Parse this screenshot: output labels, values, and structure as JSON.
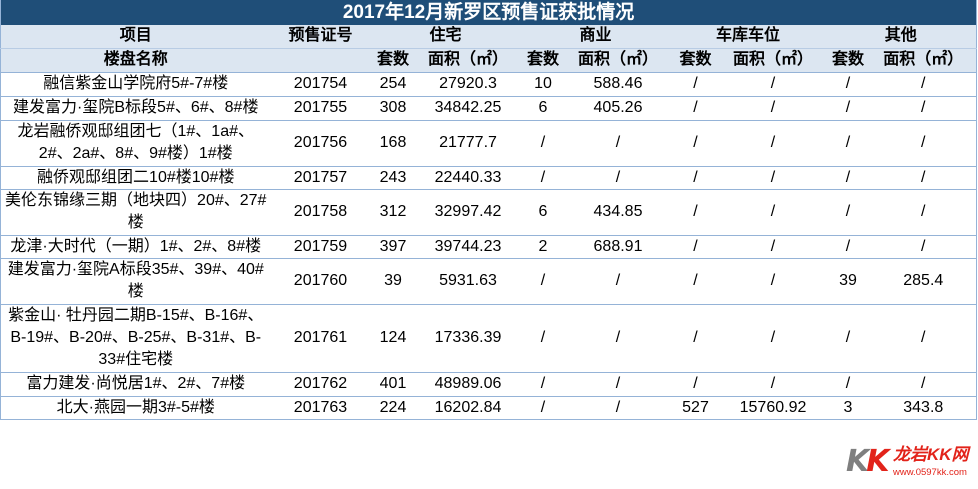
{
  "chart_data": {
    "type": "table",
    "title": "2017年12月新罗区预售证获批情况",
    "header": {
      "project": "项目",
      "permit": "预售证号",
      "residential": "住宅",
      "commercial": "商业",
      "garage": "车库车位",
      "other": "其他",
      "property_name": "楼盘名称",
      "units": "套数",
      "area": "面积（㎡）"
    },
    "rows": [
      {
        "name": "融信紫金山学院府5#-7#楼",
        "permit": "201754",
        "residential_units": 254,
        "residential_area": 27920.3,
        "commercial_units": 10,
        "commercial_area": 588.46,
        "garage_units": "/",
        "garage_area": "/",
        "other_units": "/",
        "other_area": "/"
      },
      {
        "name": "建发富力·玺院B标段5#、6#、8#楼",
        "permit": "201755",
        "residential_units": 308,
        "residential_area": 34842.25,
        "commercial_units": 6,
        "commercial_area": 405.26,
        "garage_units": "/",
        "garage_area": "/",
        "other_units": "/",
        "other_area": "/"
      },
      {
        "name": "龙岩融侨观邸组团七（1#、1a#、2#、2a#、8#、9#楼）1#楼",
        "permit": "201756",
        "residential_units": 168,
        "residential_area": 21777.7,
        "commercial_units": "/",
        "commercial_area": "/",
        "garage_units": "/",
        "garage_area": "/",
        "other_units": "/",
        "other_area": "/"
      },
      {
        "name": "融侨观邸组团二10#楼10#楼",
        "permit": "201757",
        "residential_units": 243,
        "residential_area": 22440.33,
        "commercial_units": "/",
        "commercial_area": "/",
        "garage_units": "/",
        "garage_area": "/",
        "other_units": "/",
        "other_area": "/"
      },
      {
        "name": "美伦东锦缘三期（地块四）20#、27#楼",
        "permit": "201758",
        "residential_units": 312,
        "residential_area": 32997.42,
        "commercial_units": 6,
        "commercial_area": 434.85,
        "garage_units": "/",
        "garage_area": "/",
        "other_units": "/",
        "other_area": "/"
      },
      {
        "name": "龙津·大时代（一期）1#、2#、8#楼",
        "permit": "201759",
        "residential_units": 397,
        "residential_area": 39744.23,
        "commercial_units": 2,
        "commercial_area": 688.91,
        "garage_units": "/",
        "garage_area": "/",
        "other_units": "/",
        "other_area": "/"
      },
      {
        "name": "建发富力·玺院A标段35#、39#、40#楼",
        "permit": "201760",
        "residential_units": 39,
        "residential_area": 5931.63,
        "commercial_units": "/",
        "commercial_area": "/",
        "garage_units": "/",
        "garage_area": "/",
        "other_units": 39,
        "other_area": 285.4
      },
      {
        "name": "紫金山· 牡丹园二期B-15#、B-16#、B-19#、B-20#、B-25#、B-31#、B-33#住宅楼",
        "permit": "201761",
        "residential_units": 124,
        "residential_area": 17336.39,
        "commercial_units": "/",
        "commercial_area": "/",
        "garage_units": "/",
        "garage_area": "/",
        "other_units": "/",
        "other_area": "/"
      },
      {
        "name": "富力建发·尚悦居1#、2#、7#楼",
        "permit": "201762",
        "residential_units": 401,
        "residential_area": 48989.06,
        "commercial_units": "/",
        "commercial_area": "/",
        "garage_units": "/",
        "garage_area": "/",
        "other_units": "/",
        "other_area": "/"
      },
      {
        "name": "北大·燕园一期3#-5#楼",
        "permit": "201763",
        "residential_units": 224,
        "residential_area": 16202.84,
        "commercial_units": "/",
        "commercial_area": "/",
        "garage_units": 527,
        "garage_area": 15760.92,
        "other_units": 3,
        "other_area": 343.8
      }
    ]
  },
  "logo": {
    "mark": "KK",
    "name": "龙岩KK网",
    "url": "www.0597kk.com"
  },
  "colors": {
    "title_bg": "#1f4e78",
    "header_bg": "#dce6f1",
    "grid_line": "#95b3d7",
    "header_line": "#b8cce4",
    "logo_red": "#e2231a",
    "logo_gray": "#7f7f7f"
  }
}
